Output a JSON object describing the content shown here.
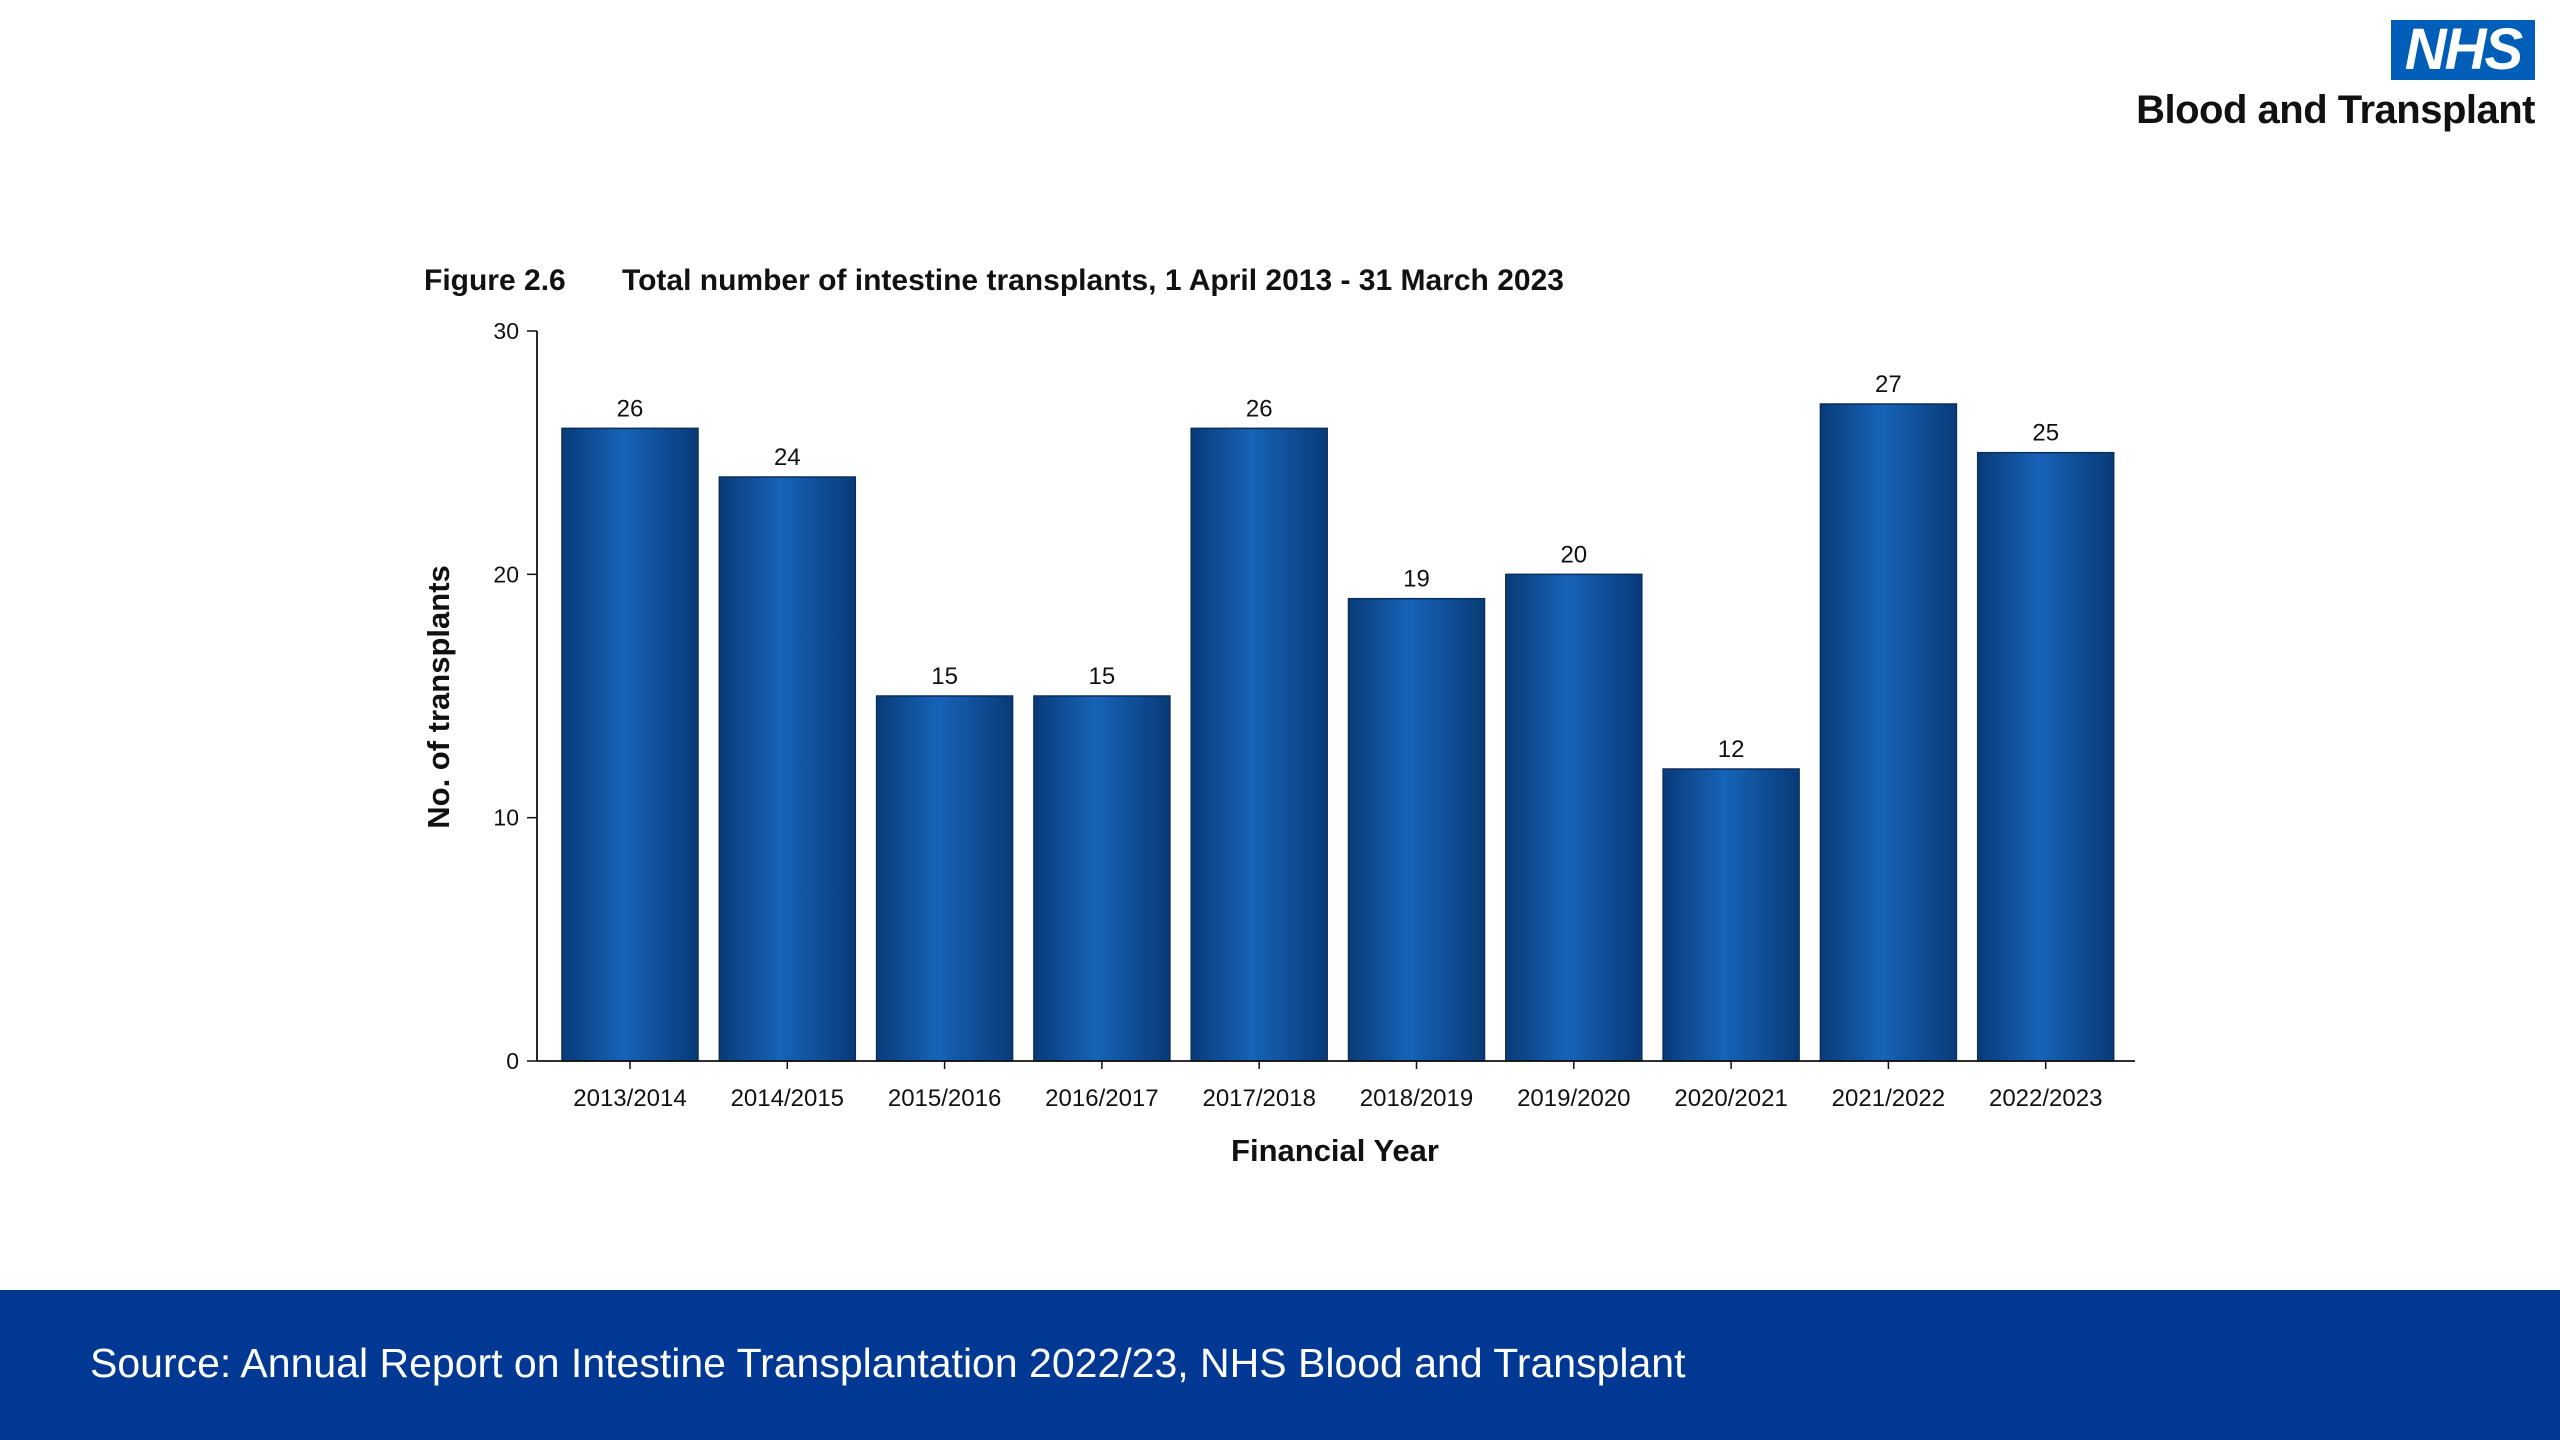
{
  "logo": {
    "badge": "NHS",
    "org": "Blood and Transplant"
  },
  "figure": {
    "number": "Figure 2.6",
    "title": "Total number of intestine transplants, 1 April 2013 - 31 March 2023"
  },
  "footer": {
    "source": "Source: Annual Report on Intestine Transplantation 2022/23, NHS Blood and Transplant"
  },
  "colors": {
    "bar": "#0b4fa0",
    "bar_dark": "#083b78",
    "bar_light": "#1763b8",
    "footer": "#003893",
    "nhs_blue": "#005eb8"
  },
  "chart_data": {
    "type": "bar",
    "title": "Total number of intestine transplants, 1 April 2013 - 31 March 2023",
    "xlabel": "Financial Year",
    "ylabel": "No. of transplants",
    "ylim": [
      0,
      30
    ],
    "yticks": [
      0,
      10,
      20,
      30
    ],
    "categories": [
      "2013/2014",
      "2014/2015",
      "2015/2016",
      "2016/2017",
      "2017/2018",
      "2018/2019",
      "2019/2020",
      "2020/2021",
      "2021/2022",
      "2022/2023"
    ],
    "values": [
      26,
      24,
      15,
      15,
      26,
      19,
      20,
      12,
      27,
      25
    ],
    "data_labels": true,
    "grid": false,
    "legend": "none"
  }
}
